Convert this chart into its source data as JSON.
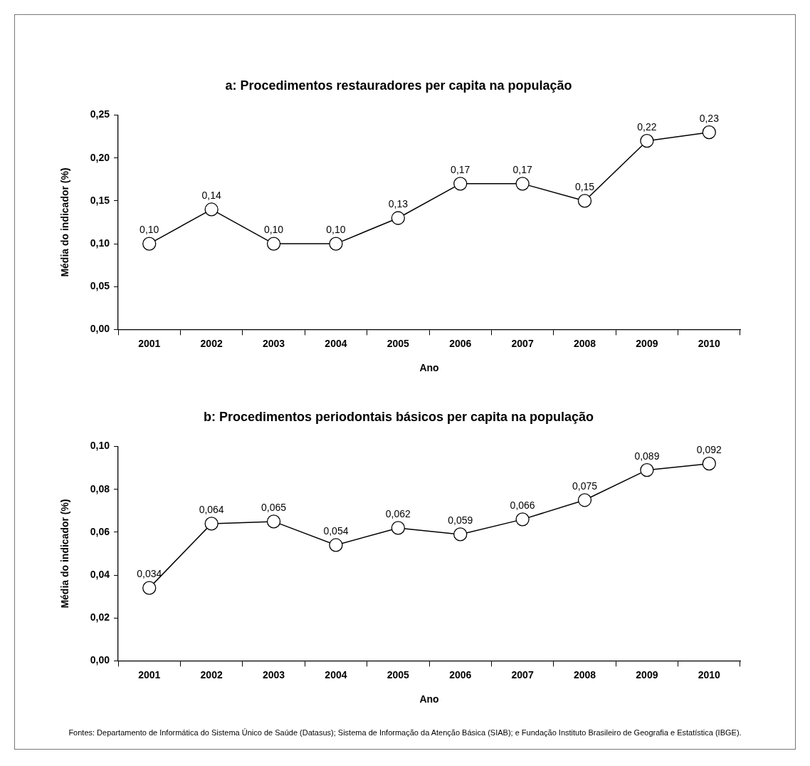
{
  "chart_data": [
    {
      "type": "line",
      "title": "a: Procedimentos restauradores per capita na população",
      "xlabel": "Ano",
      "ylabel": "Média do indicador (%)",
      "categories": [
        "2001",
        "2002",
        "2003",
        "2004",
        "2005",
        "2006",
        "2007",
        "2008",
        "2009",
        "2010"
      ],
      "series": [
        {
          "color": "#000000",
          "values": [
            0.1,
            0.14,
            0.1,
            0.1,
            0.13,
            0.17,
            0.17,
            0.15,
            0.22,
            0.23
          ],
          "value_labels": [
            "0,10",
            "0,14",
            "0,10",
            "0,10",
            "0,13",
            "0,17",
            "0,17",
            "0,15",
            "0,22",
            "0,23"
          ]
        }
      ],
      "ylim": [
        0,
        0.25
      ],
      "yticks": [
        {
          "value": 0,
          "label": "0,00"
        },
        {
          "value": 0.05,
          "label": "0,05"
        },
        {
          "value": 0.1,
          "label": "0,10"
        },
        {
          "value": 0.15,
          "label": "0,15"
        },
        {
          "value": 0.2,
          "label": "0,20"
        },
        {
          "value": 0.25,
          "label": "0,25"
        }
      ],
      "grid": false,
      "legend": false,
      "marker": "circle",
      "line_style": "solid"
    },
    {
      "type": "line",
      "title": "b: Procedimentos periodontais básicos per capita na população",
      "xlabel": "Ano",
      "ylabel": "Média do indicador (%)",
      "categories": [
        "2001",
        "2002",
        "2003",
        "2004",
        "2005",
        "2006",
        "2007",
        "2008",
        "2009",
        "2010"
      ],
      "series": [
        {
          "color": "#000000",
          "values": [
            0.034,
            0.064,
            0.065,
            0.054,
            0.062,
            0.059,
            0.066,
            0.075,
            0.089,
            0.092
          ],
          "value_labels": [
            "0,034",
            "0,064",
            "0,065",
            "0,054",
            "0,062",
            "0,059",
            "0,066",
            "0,075",
            "0,089",
            "0,092"
          ]
        }
      ],
      "ylim": [
        0,
        0.1
      ],
      "yticks": [
        {
          "value": 0,
          "label": "0,00"
        },
        {
          "value": 0.02,
          "label": "0,02"
        },
        {
          "value": 0.04,
          "label": "0,04"
        },
        {
          "value": 0.06,
          "label": "0,06"
        },
        {
          "value": 0.08,
          "label": "0,08"
        },
        {
          "value": 0.1,
          "label": "0,10"
        }
      ],
      "grid": false,
      "legend": false,
      "marker": "circle",
      "line_style": "solid",
      "annotations": [
        "Fontes: Departamento de Informática do Sistema Único de Saúde (Datasus); Sistema de Informação da Atenção Básica (SIAB); e Fundação Instituto Brasileiro de Geografia e Estatística (IBGE)."
      ]
    }
  ]
}
